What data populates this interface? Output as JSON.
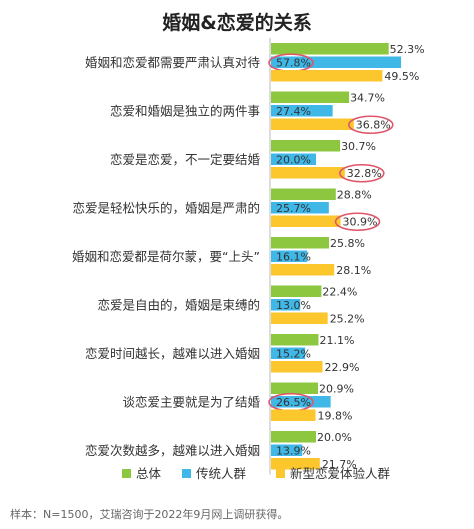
{
  "chart_data": {
    "type": "bar",
    "orientation": "horizontal",
    "title": "婚姻&恋爱的关系",
    "categories": [
      "婚姻和恋爱都需要严肃认真对待",
      "恋爱和婚姻是独立的两件事",
      "恋爱是恋爱，不一定要结婚",
      "恋爱是轻松快乐的，婚姻是严肃的",
      "婚姻和恋爱都是荷尔蒙，要“上头”",
      "恋爱是自由的，婚姻是束缚的",
      "恋爱时间越长，越难以进入婚姻",
      "谈恋爱主要就是为了结婚",
      "恋爱次数越多，越难以进入婚姻"
    ],
    "series": [
      {
        "name": "总体",
        "color": "#8dc63f",
        "values": [
          52.3,
          34.7,
          30.7,
          28.8,
          25.8,
          22.4,
          21.1,
          20.9,
          20.0
        ]
      },
      {
        "name": "传统人群",
        "color": "#3fb8e8",
        "values": [
          57.8,
          27.4,
          20.0,
          25.7,
          16.1,
          13.0,
          15.2,
          26.5,
          13.9
        ]
      },
      {
        "name": "新型恋爱体验人群",
        "color": "#fcc72c",
        "values": [
          49.5,
          36.8,
          32.8,
          30.9,
          28.1,
          25.2,
          22.9,
          19.8,
          21.7
        ]
      }
    ],
    "value_suffix": "%",
    "highlighted": [
      {
        "category_index": 0,
        "series_index": 1
      },
      {
        "category_index": 1,
        "series_index": 2
      },
      {
        "category_index": 2,
        "series_index": 2
      },
      {
        "category_index": 3,
        "series_index": 2
      },
      {
        "category_index": 7,
        "series_index": 1
      }
    ],
    "highlight_color": "#e0556a",
    "legend_position": "bottom",
    "grid": false
  },
  "source": "样本：N=1500，艾瑞咨询于2022年9月网上调研获得。"
}
